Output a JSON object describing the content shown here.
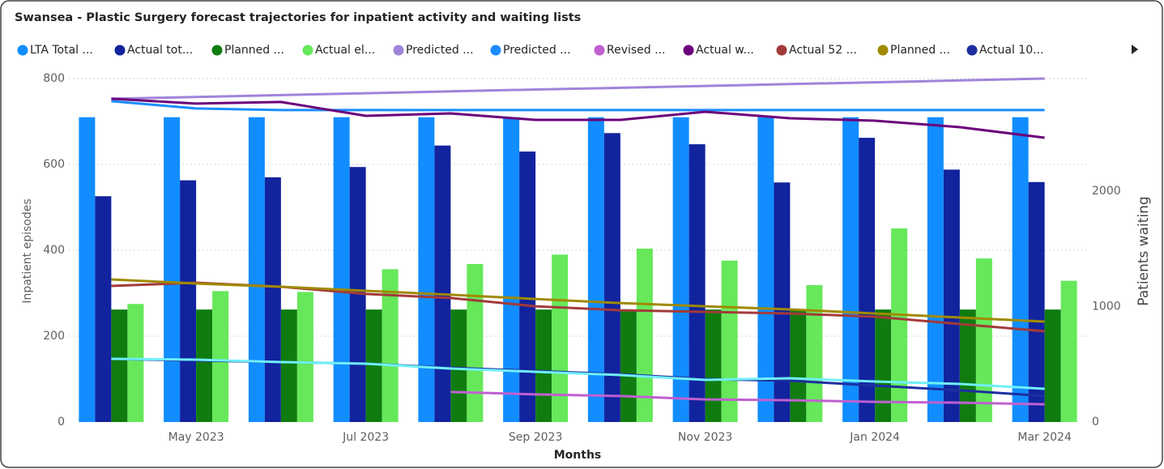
{
  "chart_data": {
    "type": "combo",
    "title": "Swansea - Plastic Surgery forecast trajectories for inpatient activity and waiting lists",
    "y_label": "Inpatient episodes",
    "y2_label": "Patients waiting",
    "x_label": "Months",
    "categories": [
      null,
      "May 2023",
      null,
      "Jul 2023",
      null,
      "Sep 2023",
      null,
      "Nov 2023",
      null,
      "Jan 2024",
      null,
      "Mar 2024"
    ],
    "ylim": [
      0,
      800
    ],
    "yticks": [
      0,
      200,
      400,
      600,
      800
    ],
    "y2lim": [
      0,
      2975
    ],
    "y2ticks": [
      0,
      1000,
      2000
    ],
    "grid": true,
    "series": [
      {
        "name": "LTA Total ...",
        "type": "bar",
        "color": "#118dff",
        "values": [
          710,
          710,
          710,
          710,
          710,
          710,
          710,
          710,
          710,
          710,
          710,
          710
        ]
      },
      {
        "name": "Actual tot...",
        "type": "bar",
        "color": "#12239e",
        "values": [
          526,
          563,
          570,
          594,
          644,
          630,
          673,
          647,
          558,
          662,
          588,
          559
        ]
      },
      {
        "name": "Planned ...",
        "type": "bar",
        "color": "#107c10",
        "values": [
          262,
          262,
          262,
          262,
          262,
          262,
          262,
          262,
          262,
          262,
          262,
          262
        ]
      },
      {
        "name": "Actual el...",
        "type": "bar",
        "color": "#66e85a",
        "values": [
          275,
          305,
          303,
          356,
          368,
          390,
          404,
          376,
          319,
          451,
          381,
          329
        ]
      },
      {
        "name": "Predicted ...",
        "type": "line",
        "axis": "y2",
        "color": "#a084d9",
        "values": [
          2800,
          2816,
          2832,
          2848,
          2864,
          2880,
          2895,
          2911,
          2927,
          2943,
          2959,
          2975
        ]
      },
      {
        "name": "Predicted ...",
        "type": "line",
        "axis": "y2",
        "color": "#1a8cff",
        "values": [
          2779,
          2716,
          2702,
          2702,
          2702,
          2702,
          2702,
          2702,
          2702,
          2702,
          2702,
          2702
        ]
      },
      {
        "name": "Revised ...",
        "type": "line",
        "axis": "y2",
        "color": "#c060d0",
        "values": [
          null,
          null,
          null,
          null,
          260,
          239,
          225,
          196,
          189,
          175,
          168,
          154
        ]
      },
      {
        "name": "Actual w...",
        "type": "line",
        "axis": "y2",
        "color": "#6b007b",
        "values": [
          2800,
          2758,
          2772,
          2652,
          2673,
          2617,
          2617,
          2687,
          2631,
          2610,
          2554,
          2463
        ]
      },
      {
        "name": "Actual 52 ...",
        "type": "line",
        "axis": "y2",
        "color": "#a33a3a",
        "values": [
          1179,
          1207,
          1172,
          1109,
          1074,
          1003,
          968,
          954,
          940,
          912,
          849,
          786
        ]
      },
      {
        "name": "Planned ...",
        "type": "line",
        "axis": "y2",
        "color": "#a08a00",
        "values": [
          1235,
          1200,
          1172,
          1137,
          1102,
          1066,
          1031,
          1003,
          975,
          940,
          905,
          870
        ]
      },
      {
        "name": "Actual 10...",
        "type": "line",
        "axis": "y2",
        "color": "#1e2fa0",
        "values": [
          547,
          533,
          519,
          505,
          470,
          442,
          414,
          372,
          358,
          316,
          274,
          225
        ]
      },
      {
        "type": "line",
        "axis": "y2",
        "color": "#6ff0f8",
        "values": [
          547,
          540,
          519,
          505,
          463,
          435,
          407,
          365,
          379,
          351,
          330,
          288
        ]
      }
    ]
  }
}
